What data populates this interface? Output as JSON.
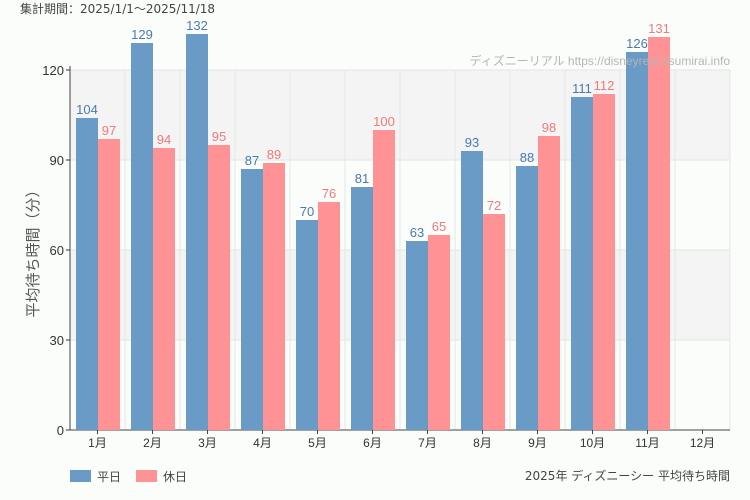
{
  "chart_data": {
    "type": "bar",
    "period_label": "集計期間：2025/1/1～2025/11/18",
    "watermark": "ディズニーリアル https://disneyreal.asumirai.info",
    "caption": "2025年 ディズニーシー 平均待ち時間",
    "ylabel": "平均待ち時間（分）",
    "xlabel": "",
    "ylim": [
      0,
      120
    ],
    "yticks": [
      0,
      30,
      60,
      90,
      120
    ],
    "grid": true,
    "legend_position": "bottom-left",
    "categories": [
      "1月",
      "2月",
      "3月",
      "4月",
      "5月",
      "6月",
      "7月",
      "8月",
      "9月",
      "10月",
      "11月",
      "12月"
    ],
    "series": [
      {
        "name": "平日",
        "color": "#6a9ac6",
        "label_color": "#4a7ab0",
        "values": [
          104,
          129,
          132,
          87,
          70,
          81,
          63,
          93,
          88,
          111,
          126,
          null
        ]
      },
      {
        "name": "休日",
        "color": "#ff9294",
        "label_color": "#f07a7c",
        "values": [
          97,
          94,
          95,
          89,
          76,
          100,
          65,
          72,
          98,
          112,
          131,
          null
        ]
      }
    ]
  }
}
